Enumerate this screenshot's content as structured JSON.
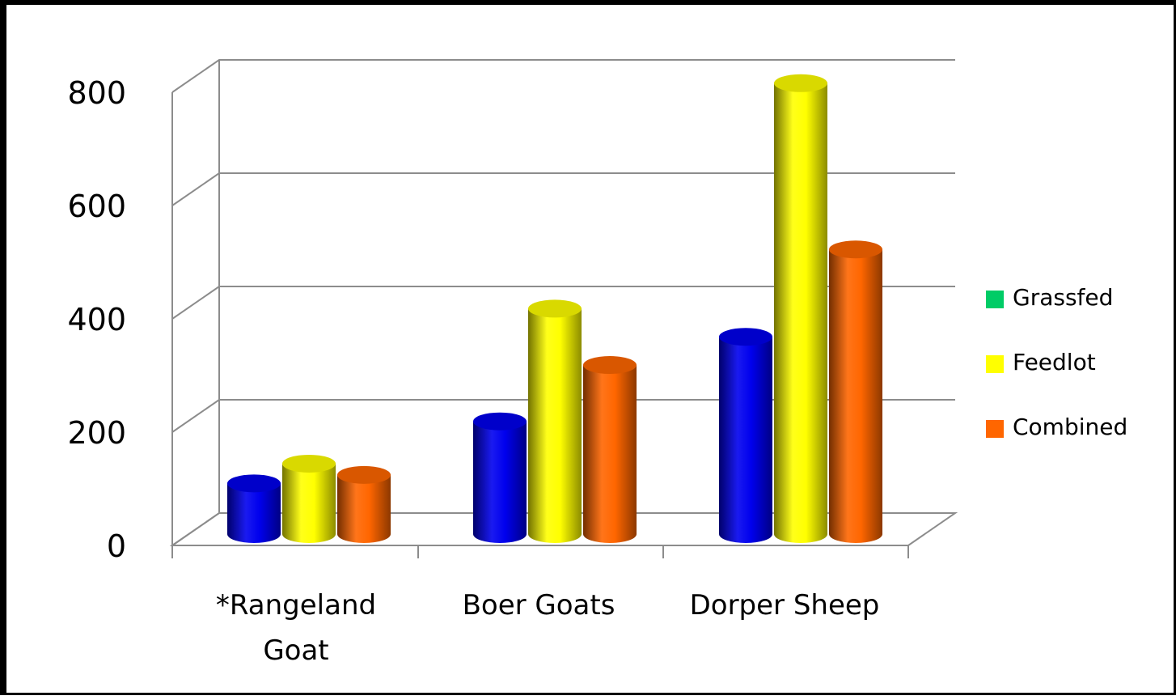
{
  "chart_data": {
    "type": "bar",
    "categories": [
      "*Rangeland Goat",
      "Boer Goats",
      "Dorper Sheep"
    ],
    "category_lines": [
      [
        "*Rangeland",
        "Goat"
      ],
      [
        "Boer Goats"
      ],
      [
        "Dorper Sheep"
      ]
    ],
    "series": [
      {
        "name": "Grassfed",
        "values": [
          90,
          200,
          350
        ],
        "color": "#0000ee",
        "legend_color": "#00cc66"
      },
      {
        "name": "Feedlot",
        "values": [
          125,
          400,
          800
        ],
        "color": "#ffff00",
        "legend_color": "#ffff00"
      },
      {
        "name": "Combined",
        "values": [
          105,
          300,
          505
        ],
        "color": "#ff6600",
        "legend_color": "#ff6600"
      }
    ],
    "yticks": [
      0,
      200,
      400,
      600,
      800
    ],
    "ylim": [
      0,
      800
    ],
    "grid": true,
    "legend_position": "right",
    "style": "3d-cylinder"
  }
}
